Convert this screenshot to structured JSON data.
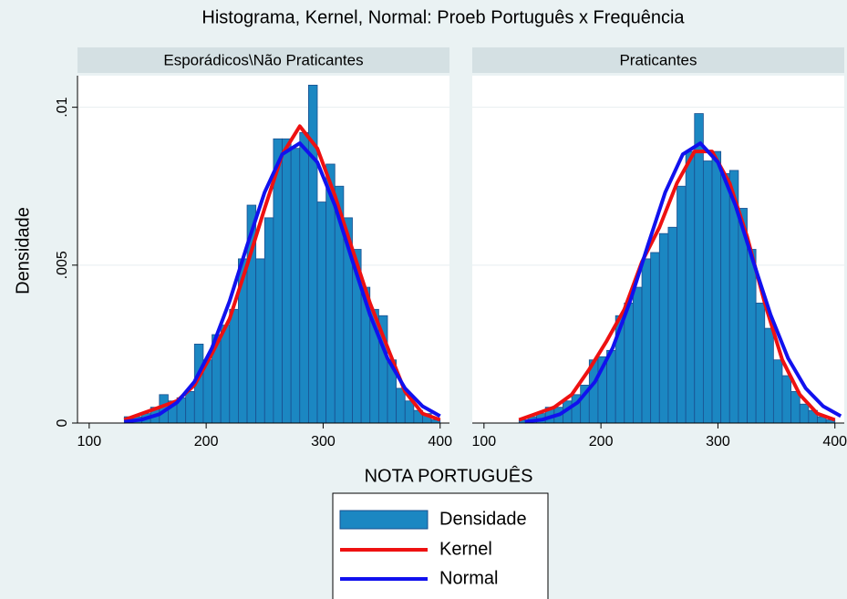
{
  "chart_data": {
    "type": "histogram",
    "title": "Histograma, Kernel, Normal: Proeb Português x Frequência",
    "ylabel": "Densidade",
    "xlabel": "NOTA PORTUGUÊS",
    "ylim": [
      0,
      0.011
    ],
    "yticks": [
      0,
      {
        "value": 0.005,
        "label": ".005"
      },
      {
        "value": 0.01,
        "label": ".01"
      }
    ],
    "xlim": [
      90,
      408
    ],
    "xticks": [
      100,
      200,
      300,
      400
    ],
    "grid": true,
    "series": [
      {
        "name": "Densidade",
        "color": "#1b87c2",
        "edgecolor": "#1a4f8f"
      },
      {
        "name": "Kernel",
        "color": "#ee1111"
      },
      {
        "name": "Normal",
        "color": "#1111ee"
      }
    ],
    "panels": [
      {
        "title": "Esporádicos\\Não Praticantes",
        "bins": [
          130,
          137.5,
          145,
          152.5,
          160,
          167.5,
          175,
          182.5,
          190,
          197.5,
          205,
          212.5,
          220,
          227.5,
          235,
          242.5,
          250,
          257.5,
          265,
          272.5,
          280,
          287.5,
          295,
          302.5,
          310,
          317.5,
          325,
          332.5,
          340,
          347.5,
          355,
          362.5,
          370,
          377.5,
          385,
          392.5,
          400
        ],
        "values": [
          0.0002,
          0.0002,
          0.0003,
          0.0005,
          0.0009,
          0.0007,
          0.0008,
          0.001,
          0.0025,
          0.002,
          0.0028,
          0.0031,
          0.0036,
          0.0052,
          0.0069,
          0.0052,
          0.0065,
          0.009,
          0.009,
          0.0087,
          0.0092,
          0.0107,
          0.007,
          0.0082,
          0.0075,
          0.0065,
          0.0055,
          0.0043,
          0.0036,
          0.0034,
          0.002,
          0.0011,
          0.0007,
          0.0004,
          0.0003,
          0.0001
        ],
        "kernel_x": [
          130,
          145,
          160,
          175,
          190,
          205,
          220,
          235,
          250,
          265,
          280,
          295,
          310,
          325,
          340,
          355,
          370,
          385,
          400
        ],
        "kernel_values": [
          0.0001,
          0.0003,
          0.0005,
          0.0007,
          0.0012,
          0.0022,
          0.0033,
          0.005,
          0.0068,
          0.0085,
          0.0094,
          0.0087,
          0.0072,
          0.0055,
          0.0038,
          0.0024,
          0.001,
          0.0003,
          0.0001
        ],
        "normal_x": [
          130,
          145,
          160,
          175,
          190,
          205,
          220,
          235,
          250,
          265,
          280,
          295,
          310,
          325,
          340,
          355,
          370,
          385,
          400
        ],
        "normal_values": [
          4e-05,
          0.00011,
          0.00028,
          0.00065,
          0.00131,
          0.00238,
          0.00386,
          0.00562,
          0.00731,
          0.00851,
          0.00886,
          0.00826,
          0.00689,
          0.00514,
          0.00343,
          0.00205,
          0.0011,
          0.00053,
          0.00022
        ]
      },
      {
        "title": "Praticantes",
        "bins": [
          130,
          137.5,
          145,
          152.5,
          160,
          167.5,
          175,
          182.5,
          190,
          197.5,
          205,
          212.5,
          220,
          227.5,
          235,
          242.5,
          250,
          257.5,
          265,
          272.5,
          280,
          287.5,
          295,
          302.5,
          310,
          317.5,
          325,
          332.5,
          340,
          347.5,
          355,
          362.5,
          370,
          377.5,
          385,
          392.5,
          400
        ],
        "values": [
          0.0001,
          0.0002,
          0.0003,
          0.0005,
          0.0005,
          0.0007,
          0.0009,
          0.0012,
          0.002,
          0.0021,
          0.0023,
          0.0034,
          0.0038,
          0.0043,
          0.0052,
          0.0054,
          0.006,
          0.0062,
          0.0075,
          0.0086,
          0.0098,
          0.0083,
          0.0086,
          0.0079,
          0.008,
          0.0068,
          0.0055,
          0.0038,
          0.003,
          0.002,
          0.0015,
          0.001,
          0.0006,
          0.0004,
          0.0002,
          0.0001
        ],
        "kernel_x": [
          130,
          145,
          160,
          175,
          190,
          205,
          220,
          235,
          250,
          265,
          280,
          295,
          310,
          325,
          340,
          355,
          370,
          385,
          400
        ],
        "kernel_values": [
          0.0001,
          0.0003,
          0.0005,
          0.0009,
          0.0017,
          0.0026,
          0.0036,
          0.0051,
          0.0062,
          0.0076,
          0.0086,
          0.0086,
          0.0076,
          0.0059,
          0.0038,
          0.002,
          0.0009,
          0.0003,
          0.0001
        ],
        "normal_x": [
          135,
          150,
          165,
          180,
          195,
          210,
          225,
          240,
          255,
          270,
          285,
          300,
          315,
          330,
          345,
          360,
          375,
          390,
          405
        ],
        "normal_values": [
          4e-05,
          0.00011,
          0.00028,
          0.00065,
          0.00131,
          0.00238,
          0.00386,
          0.00562,
          0.00731,
          0.00851,
          0.00886,
          0.00826,
          0.00689,
          0.00514,
          0.00343,
          0.00205,
          0.0011,
          0.00053,
          0.00022
        ]
      }
    ]
  }
}
